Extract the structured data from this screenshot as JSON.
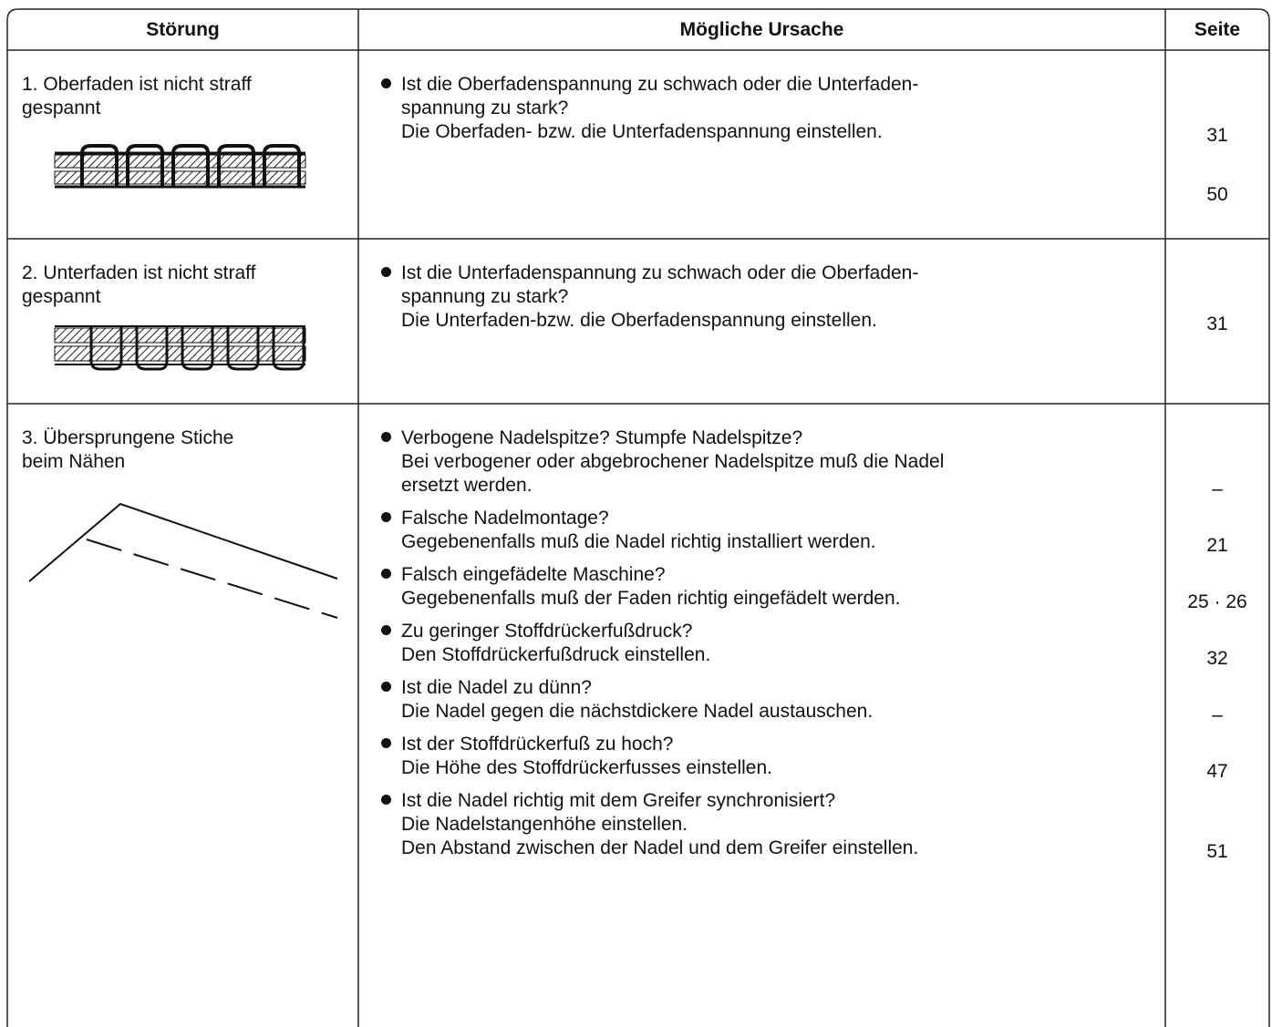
{
  "header": [
    "Störung",
    "Mögliche Ursache",
    "Seite"
  ],
  "rows": [
    {
      "problem": [
        "1. Oberfaden ist nicht straff",
        "gespannt"
      ],
      "causes": [
        {
          "lines": [
            "Ist die Oberfadenspannung zu schwach oder die Unterfaden-",
            "spannung zu stark?",
            "Die Oberfaden- bzw. die Unterfadenspannung einstellen."
          ],
          "pages": [
            "31",
            "50"
          ]
        }
      ]
    },
    {
      "problem": [
        "2. Unterfaden ist nicht straff",
        "gespannt"
      ],
      "causes": [
        {
          "lines": [
            "Ist die Unterfadenspannung zu schwach oder die Oberfaden-",
            "spannung zu stark?",
            "Die Unterfaden-bzw. die Oberfadenspannung einstellen."
          ],
          "pages": [
            "31"
          ]
        }
      ]
    },
    {
      "problem": [
        "3. Übersprungene Stiche",
        "beim Nähen"
      ],
      "causes": [
        {
          "lines": [
            "Verbogene Nadelspitze? Stumpfe Nadelspitze?",
            "Bei verbogener oder abgebrochener Nadelspitze muß die Nadel",
            "ersetzt werden."
          ],
          "pages": [
            "–"
          ]
        },
        {
          "lines": [
            "Falsche Nadelmontage?",
            "Gegebenenfalls muß die Nadel richtig installiert werden."
          ],
          "pages": [
            "21"
          ]
        },
        {
          "lines": [
            "Falsch eingefädelte Maschine?",
            "Gegebenenfalls muß der Faden richtig eingefädelt werden."
          ],
          "pages": [
            "25 · 26"
          ]
        },
        {
          "lines": [
            "Zu geringer Stoffdrückerfußdruck?",
            "Den Stoffdrückerfußdruck einstellen."
          ],
          "pages": [
            "32"
          ]
        },
        {
          "lines": [
            "Ist die Nadel zu dünn?",
            "Die Nadel gegen die nächstdickere Nadel austauschen."
          ],
          "pages": [
            "–"
          ]
        },
        {
          "lines": [
            "Ist der Stoffdrückerfuß zu hoch?",
            "Die Höhe des Stoffdrückerfusses einstellen."
          ],
          "pages": [
            "47"
          ]
        },
        {
          "lines": [
            "Ist die Nadel richtig mit dem Greifer synchronisiert?",
            "Die Nadelstangenhöhe einstellen.",
            "Den Abstand zwischen der Nadel und dem Greifer einstellen."
          ],
          "pages": [
            "51"
          ]
        }
      ]
    }
  ]
}
